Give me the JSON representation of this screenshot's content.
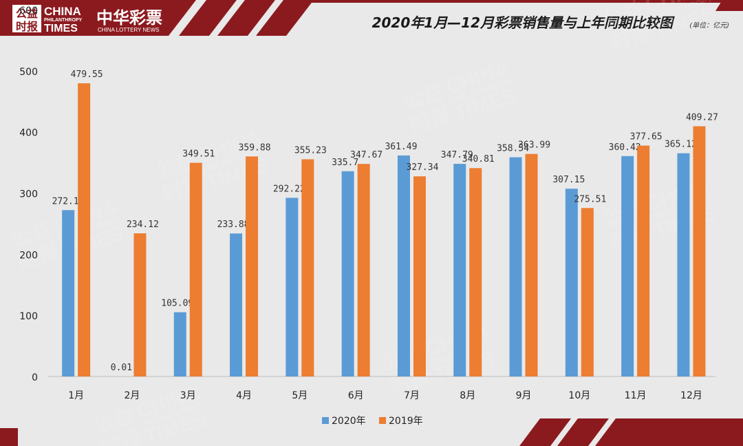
{
  "header": {
    "logo_chinese_top": "公益",
    "logo_chinese_bottom": "时报",
    "logo_english_1": "CHINA",
    "logo_english_2": "PHILANTHROPY",
    "logo_english_3": "TIMES",
    "brand_name": "中华彩票",
    "brand_sub": "CHINA LOTTERY NEWS",
    "title": "2020年1月—12月彩票销售量与上年同期比较图",
    "unit": "(单位：亿元)"
  },
  "watermark": {
    "cn_top": "公益",
    "cn_bottom": "时报",
    "en_1": "CHINA",
    "en_2": "PHILANTHROPY",
    "en_3": "TIMES"
  },
  "colors": {
    "series_2020": "#5b9bd5",
    "series_2019": "#ed7d31",
    "accent": "#8b1a1f",
    "background": "#e9e9e9"
  },
  "chart_data": {
    "type": "bar",
    "title": "2020年1月—12月彩票销售量与上年同期比较图",
    "unit": "(单位：亿元)",
    "categories": [
      "1月",
      "2月",
      "3月",
      "4月",
      "5月",
      "6月",
      "7月",
      "8月",
      "9月",
      "10月",
      "11月",
      "12月"
    ],
    "series": [
      {
        "name": "2020年",
        "values": [
          272.1,
          0.01,
          105.09,
          233.88,
          292.22,
          335.7,
          361.49,
          347.79,
          358.54,
          307.15,
          360.42,
          365.12
        ],
        "labels": [
          "272.1",
          "0.01",
          "105.09",
          "233.88",
          "292.22",
          "335.7",
          "361.49",
          "347.79",
          "358.54",
          "307.15",
          "360.42",
          "365.12"
        ]
      },
      {
        "name": "2019年",
        "values": [
          479.55,
          234.12,
          349.51,
          359.88,
          355.23,
          347.67,
          327.34,
          340.81,
          363.99,
          275.51,
          377.65,
          409.27
        ],
        "labels": [
          "479.55",
          "234.12",
          "349.51",
          "359.88",
          "355.23",
          "347.67",
          "327.34",
          "340.81",
          "363.99",
          "275.51",
          "377.65",
          "409.27"
        ]
      }
    ],
    "yticks": [
      "0",
      "100",
      "200",
      "300",
      "400",
      "500",
      "600"
    ],
    "ylim": [
      0,
      600
    ],
    "grid": false,
    "legend_position": "bottom"
  }
}
